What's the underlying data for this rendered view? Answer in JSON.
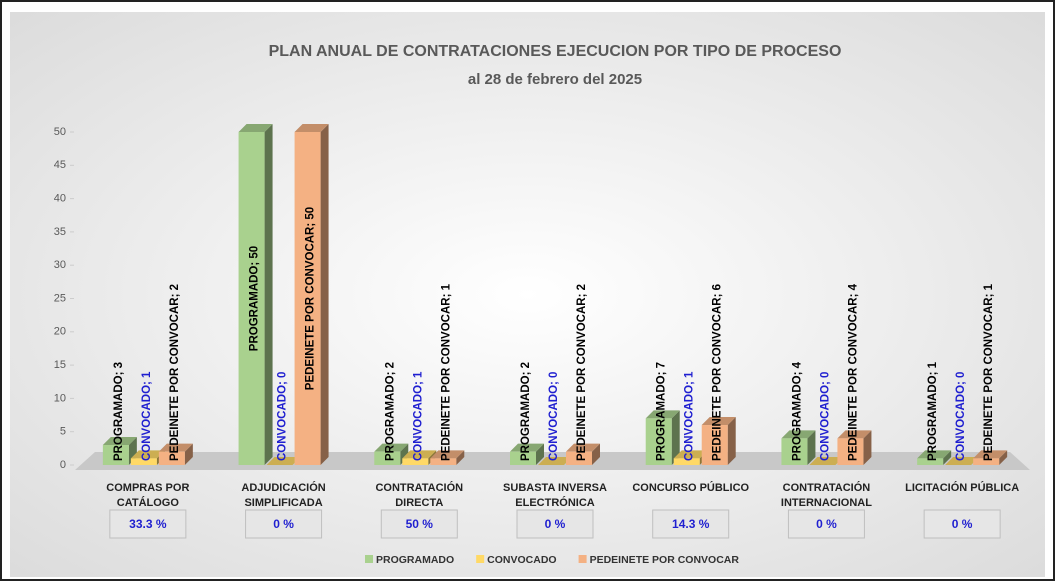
{
  "chart_data": {
    "type": "bar3d",
    "title": "PLAN ANUAL DE CONTRATACIONES EJECUCION POR TIPO DE PROCESO",
    "subtitle": "al 28 de febrero del 2025",
    "categories": [
      "COMPRAS POR\nCATÁLOGO",
      "ADJUDICACIÓN\nSIMPLIFICADA",
      "CONTRATACIÓN\nDIRECTA",
      "SUBASTA INVERSA\nELECTRÓNICA",
      "CONCURSO PÚBLICO",
      "CONTRATACIÓN\nINTERNACIONAL",
      "LICITACIÓN PÚBLICA"
    ],
    "series": [
      {
        "name": "PROGRAMADO",
        "color": "#a9d18e",
        "label_color": "#000000",
        "values": [
          3,
          50,
          2,
          2,
          7,
          4,
          1
        ],
        "value_labels": [
          "PROGRAMADO; 3",
          "PROGRAMADO; 50",
          "PROGRAMADO; 2",
          "PROGRAMADO; 2",
          "PROGRAMADO; 7",
          "PROGRAMADO; 4",
          "PROGRAMADO; 1"
        ]
      },
      {
        "name": "CONVOCADO",
        "color": "#ffd966",
        "label_color": "#1f1fd0",
        "values": [
          1,
          0,
          1,
          0,
          1,
          0,
          0
        ],
        "value_labels": [
          "CONVOCADO; 1",
          "CONVOCADO; 0",
          "CONVOCADO; 1",
          "CONVOCADO; 0",
          "CONVOCADO; 1",
          "CONVOCADO; 0",
          "CONVOCADO; 0"
        ]
      },
      {
        "name": "PEDEINETE POR CONVOCAR",
        "color": "#f4b183",
        "label_color": "#000000",
        "values": [
          2,
          50,
          1,
          2,
          6,
          4,
          1
        ],
        "value_labels": [
          "PEDEINETE POR CONVOCAR; 2",
          "PEDEINETE POR CONVOCAR; 50",
          "PEDEINETE POR CONVOCAR; 1",
          "PEDEINETE POR CONVOCAR; 2",
          "PEDEINETE POR CONVOCAR; 6",
          "PEDEINETE POR CONVOCAR; 4",
          "PEDEINETE POR CONVOCAR; 1"
        ]
      }
    ],
    "annotations": [
      "33.3 %",
      "0 %",
      "50 %",
      "0 %",
      "14.3 %",
      "0 %",
      "0 %"
    ],
    "ylim": [
      0,
      50
    ],
    "yticks": [
      0,
      5,
      10,
      15,
      20,
      25,
      30,
      35,
      40,
      45,
      50
    ],
    "legend": "bottom"
  }
}
